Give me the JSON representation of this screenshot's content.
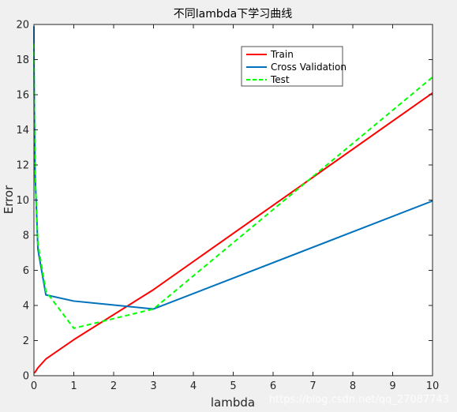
{
  "chart_data": {
    "type": "line",
    "title": "不同lambda下学习曲线",
    "xlabel": "lambda",
    "ylabel": "Error",
    "xlim": [
      0,
      10
    ],
    "ylim": [
      0,
      20
    ],
    "xticks": [
      0,
      1,
      2,
      3,
      4,
      5,
      6,
      7,
      8,
      9,
      10
    ],
    "yticks": [
      0,
      2,
      4,
      6,
      8,
      10,
      12,
      14,
      16,
      18,
      20
    ],
    "grid": false,
    "legend_position": "top-right",
    "series": [
      {
        "name": "Train",
        "color": "#ff0000",
        "style": "solid",
        "x": [
          0,
          0.001,
          0.003,
          0.01,
          0.03,
          0.1,
          0.3,
          1,
          3,
          10
        ],
        "y": [
          0.15,
          0.15,
          0.15,
          0.17,
          0.2,
          0.45,
          0.95,
          2.05,
          4.9,
          16.1
        ]
      },
      {
        "name": "Cross Validation",
        "color": "#0072bd",
        "style": "solid",
        "x": [
          0,
          0.001,
          0.003,
          0.01,
          0.03,
          0.1,
          0.3,
          1,
          3,
          10
        ],
        "y": [
          19.9,
          18.9,
          17.5,
          15.3,
          11.5,
          7.2,
          4.6,
          4.25,
          3.8,
          9.95
        ]
      },
      {
        "name": "Test",
        "color": "#00ff00",
        "style": "dashed",
        "x": [
          0,
          0.001,
          0.003,
          0.01,
          0.03,
          0.1,
          0.3,
          1,
          3,
          10
        ],
        "y": [
          18.9,
          18.2,
          17.0,
          14.8,
          11.3,
          7.5,
          4.8,
          2.7,
          3.8,
          17.0
        ]
      }
    ]
  },
  "watermark": "https://blog.csdn.net/qq_27087743"
}
